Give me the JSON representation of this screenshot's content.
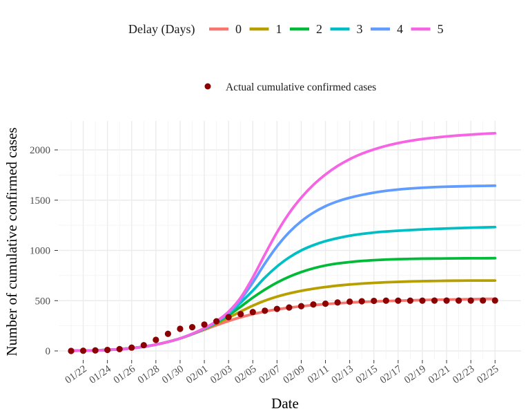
{
  "chart_data": {
    "type": "line",
    "xlabel": "Date",
    "ylabel": "Number of cumulative confirmed cases",
    "xlim": [
      "01/20",
      "02/26"
    ],
    "ylim": [
      -60,
      2300
    ],
    "yticks": [
      0,
      500,
      1000,
      1500,
      2000
    ],
    "xtick_labels": [
      "01/22",
      "01/24",
      "01/26",
      "01/28",
      "01/30",
      "02/01",
      "02/03",
      "02/05",
      "02/07",
      "02/09",
      "02/11",
      "02/13",
      "02/15",
      "02/17",
      "02/19",
      "02/21",
      "02/23",
      "02/25"
    ],
    "grid": true,
    "legend_title": "Delay (Days)",
    "legend_position": "top",
    "x": [
      "01/21",
      "01/22",
      "01/23",
      "01/24",
      "01/25",
      "01/26",
      "01/27",
      "01/28",
      "01/29",
      "01/30",
      "01/31",
      "02/01",
      "02/02",
      "02/03",
      "02/04",
      "02/05",
      "02/06",
      "02/07",
      "02/08",
      "02/09",
      "02/10",
      "02/11",
      "02/12",
      "02/13",
      "02/14",
      "02/15",
      "02/16",
      "02/17",
      "02/18",
      "02/19",
      "02/20",
      "02/21",
      "02/22",
      "02/23",
      "02/24",
      "02/25"
    ],
    "series": [
      {
        "name": "0",
        "color": "#F8766D",
        "values": [
          2,
          3,
          5,
          10,
          17,
          27,
          42,
          63,
          90,
          124,
          166,
          211,
          256,
          298,
          335,
          366,
          392,
          413,
          430,
          444,
          456,
          466,
          474,
          481,
          487,
          492,
          496,
          500,
          503,
          506,
          509,
          511,
          513,
          515,
          517,
          518
        ]
      },
      {
        "name": "1",
        "color": "#B79F00",
        "values": [
          2,
          3,
          5,
          10,
          17,
          27,
          42,
          63,
          90,
          124,
          168,
          218,
          272,
          330,
          392,
          450,
          500,
          540,
          572,
          598,
          619,
          636,
          650,
          661,
          670,
          677,
          683,
          687,
          691,
          694,
          696,
          698,
          699,
          700,
          700,
          700
        ]
      },
      {
        "name": "2",
        "color": "#00BA38",
        "values": [
          2,
          3,
          5,
          10,
          17,
          27,
          42,
          63,
          90,
          124,
          168,
          220,
          280,
          355,
          440,
          530,
          610,
          680,
          738,
          785,
          822,
          850,
          870,
          884,
          895,
          903,
          909,
          913,
          916,
          918,
          919,
          920,
          921,
          922,
          922,
          923
        ]
      },
      {
        "name": "3",
        "color": "#00BFC4",
        "values": [
          2,
          3,
          5,
          10,
          17,
          27,
          42,
          63,
          90,
          124,
          168,
          222,
          285,
          370,
          480,
          600,
          730,
          840,
          930,
          1000,
          1052,
          1092,
          1122,
          1146,
          1164,
          1178,
          1188,
          1196,
          1203,
          1209,
          1214,
          1218,
          1222,
          1226,
          1229,
          1232
        ]
      },
      {
        "name": "4",
        "color": "#619CFF",
        "values": [
          2,
          3,
          5,
          10,
          17,
          27,
          42,
          63,
          90,
          124,
          170,
          224,
          290,
          380,
          510,
          680,
          870,
          1040,
          1180,
          1290,
          1375,
          1440,
          1488,
          1524,
          1552,
          1575,
          1593,
          1606,
          1616,
          1624,
          1630,
          1634,
          1637,
          1640,
          1642,
          1644
        ]
      },
      {
        "name": "5",
        "color": "#F564E3",
        "values": [
          2,
          3,
          5,
          10,
          17,
          27,
          42,
          63,
          90,
          124,
          170,
          226,
          295,
          390,
          530,
          730,
          960,
          1180,
          1370,
          1525,
          1652,
          1755,
          1840,
          1908,
          1962,
          2005,
          2040,
          2068,
          2090,
          2108,
          2122,
          2134,
          2144,
          2152,
          2160,
          2166
        ]
      }
    ],
    "points": {
      "name": "Actual cumulative confirmed cases",
      "color": "#8B0000",
      "values": [
        0,
        2,
        5,
        10,
        18,
        33,
        57,
        110,
        170,
        220,
        236,
        262,
        295,
        336,
        366,
        387,
        400,
        418,
        432,
        445,
        462,
        470,
        482,
        490,
        494,
        498,
        500,
        500,
        500,
        500,
        501,
        501,
        501,
        501,
        502,
        502
      ]
    }
  }
}
